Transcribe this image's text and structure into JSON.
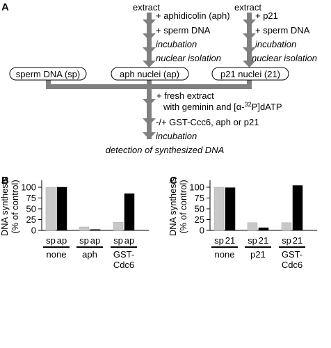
{
  "colors": {
    "arrow": "#808080",
    "light_bar": "#c8c8c8",
    "dark_bar": "#000000"
  },
  "scheme": {
    "panel_label": "A",
    "col1": [
      "extract",
      "+ aphidicolin (aph)",
      "+ sperm DNA",
      "incubation",
      "nuclear isolation"
    ],
    "col2": [
      "extract",
      "+ p21",
      "+ sperm DNA",
      "incubation",
      "nuclear isolation"
    ],
    "boxes": [
      "sperm DNA (sp)",
      "aph nuclei (ap)",
      "p21 nuclei (21)"
    ],
    "lower": {
      "step1_line1": "+ fresh extract",
      "step1_line2_prefix": "with geminin and [α-",
      "step1_sup": "32",
      "step1_line2_suffix": "P]dATP",
      "step2": "-/+ GST-Ccc6, aph or p21",
      "step3": "incubation",
      "result": "detection of synthesized DNA"
    }
  },
  "chart_data": [
    {
      "type": "bar",
      "panel": "B",
      "ylabel": [
        "DNA synthesis",
        "(% of control)"
      ],
      "yticks": [
        0,
        25,
        50,
        75,
        100
      ],
      "ylim": [
        0,
        112
      ],
      "groups": [
        {
          "label": [
            "none"
          ],
          "bar_labels": [
            "sp",
            "ap"
          ],
          "values": [
            100,
            100
          ]
        },
        {
          "label": [
            "aph"
          ],
          "bar_labels": [
            "sp",
            "ap"
          ],
          "values": [
            8,
            2
          ]
        },
        {
          "label": [
            "GST-",
            "Cdc6"
          ],
          "bar_labels": [
            "sp",
            "ap"
          ],
          "values": [
            19,
            85
          ]
        }
      ]
    },
    {
      "type": "bar",
      "panel": "C",
      "ylabel": [
        "DNA synthesis",
        "(% of control)"
      ],
      "yticks": [
        0,
        25,
        50,
        75,
        100
      ],
      "ylim": [
        0,
        112
      ],
      "groups": [
        {
          "label": [
            "none"
          ],
          "bar_labels": [
            "sp",
            "21"
          ],
          "values": [
            100,
            99
          ]
        },
        {
          "label": [
            "p21"
          ],
          "bar_labels": [
            "sp",
            "21"
          ],
          "values": [
            18,
            6
          ]
        },
        {
          "label": [
            "GST-",
            "Cdc6"
          ],
          "bar_labels": [
            "sp",
            "21"
          ],
          "values": [
            18,
            104
          ]
        }
      ]
    }
  ]
}
